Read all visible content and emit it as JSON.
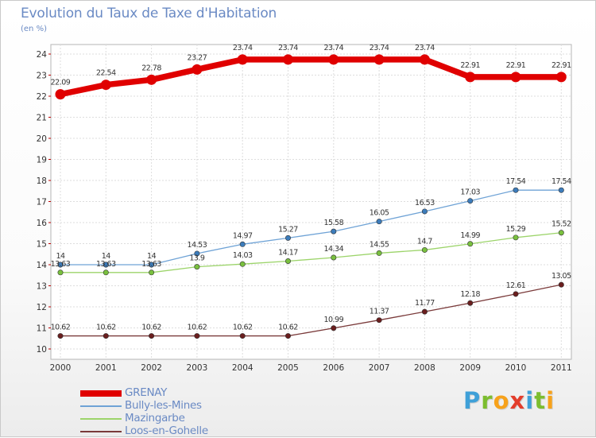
{
  "header": {
    "title": "Evolution du Taux de Taxe d'Habitation",
    "subtitle": "(en %)"
  },
  "logo": {
    "letters": [
      "P",
      "r",
      "o",
      "x",
      "i",
      "t",
      "i"
    ],
    "colors": [
      "#3fa0d8",
      "#7cbd2f",
      "#f7a21b",
      "#e33d2b",
      "#3fa0d8",
      "#7cbd2f",
      "#f7a21b"
    ]
  },
  "chart_data": {
    "type": "line",
    "title": "Evolution du Taux de Taxe d'Habitation",
    "subtitle": "(en %)",
    "xlabel": "",
    "ylabel": "",
    "x": [
      "2000",
      "2001",
      "2002",
      "2003",
      "2004",
      "2005",
      "2006",
      "2007",
      "2008",
      "2009",
      "2010",
      "2011"
    ],
    "ylim": [
      10,
      24
    ],
    "yticks": [
      10,
      11,
      12,
      13,
      14,
      15,
      16,
      17,
      18,
      19,
      20,
      21,
      22,
      23,
      24
    ],
    "grid": true,
    "legend_position": "bottom-left",
    "series": [
      {
        "name": "GRENAY",
        "color": "#e00000",
        "values": [
          22.09,
          22.54,
          22.78,
          23.27,
          23.74,
          23.74,
          23.74,
          23.74,
          23.74,
          22.91,
          22.91,
          22.91
        ],
        "labels": [
          "22.09",
          "22.54",
          "22.78",
          "23.27",
          "23.74",
          "23.74",
          "23.74",
          "23.74",
          "23.74",
          "22.91",
          "22.91",
          "22.91"
        ]
      },
      {
        "name": "Bully-les-Mines",
        "color": "#6fa3d6",
        "marker": "#3c7cbb",
        "values": [
          14,
          14,
          14,
          14.53,
          14.97,
          15.27,
          15.58,
          16.05,
          16.53,
          17.03,
          17.54,
          17.54
        ],
        "labels": [
          "14",
          "14",
          "14",
          "14.53",
          "14.97",
          "15.27",
          "15.58",
          "16.05",
          "16.53",
          "17.03",
          "17.54",
          "17.54"
        ]
      },
      {
        "name": "Mazingarbe",
        "color": "#9cd46a",
        "marker": "#79c03e",
        "values": [
          13.63,
          13.63,
          13.63,
          13.9,
          14.03,
          14.17,
          14.34,
          14.55,
          14.7,
          14.99,
          15.29,
          15.52
        ],
        "labels": [
          "13.63",
          "13.63",
          "13.63",
          "13.9",
          "14.03",
          "14.17",
          "14.34",
          "14.55",
          "14.7",
          "14.99",
          "15.29",
          "15.52"
        ]
      },
      {
        "name": "Loos-en-Gohelle",
        "color": "#7a3a3a",
        "marker": "#6a1e1e",
        "values": [
          10.62,
          10.62,
          10.62,
          10.62,
          10.62,
          10.62,
          10.99,
          11.37,
          11.77,
          12.18,
          12.61,
          13.05
        ],
        "labels": [
          "10.62",
          "10.62",
          "10.62",
          "10.62",
          "10.62",
          "10.62",
          "10.99",
          "11.37",
          "11.77",
          "12.18",
          "12.61",
          "13.05"
        ]
      }
    ]
  }
}
